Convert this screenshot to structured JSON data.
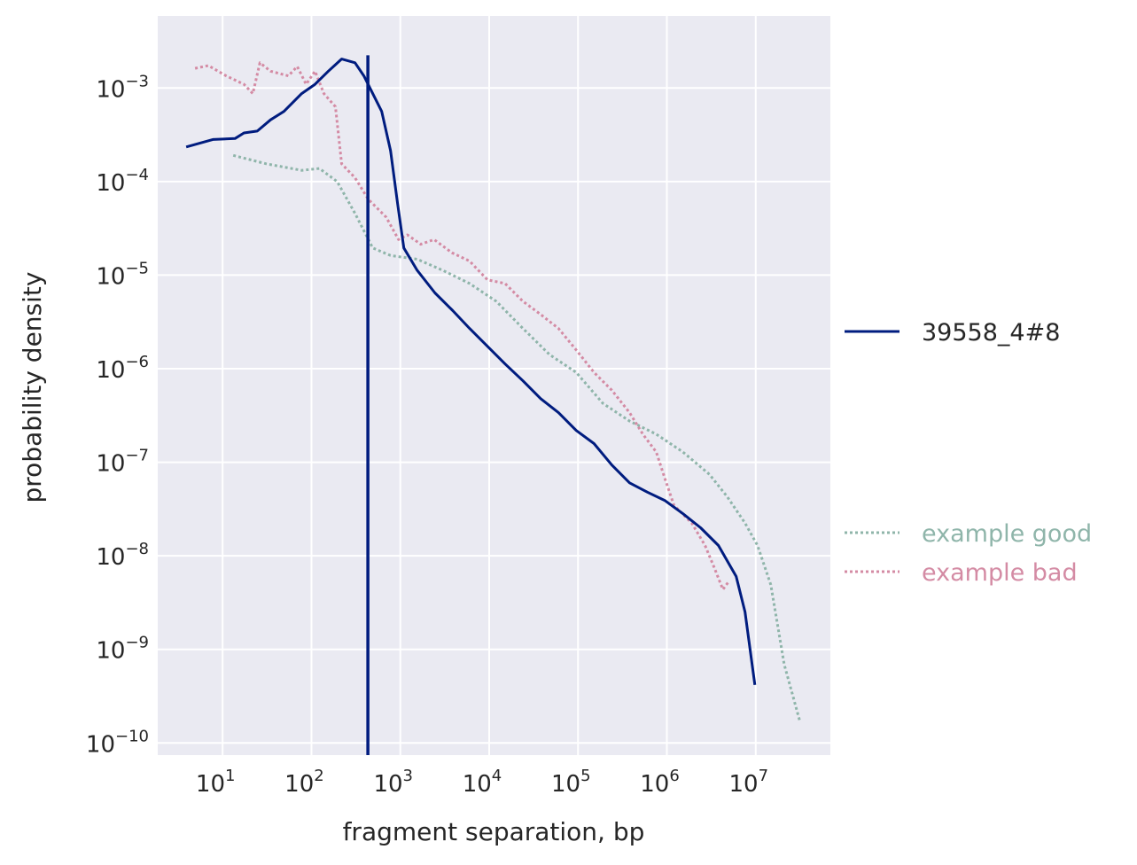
{
  "chart_data": {
    "type": "line",
    "title": "",
    "xlabel": "fragment separation, bp",
    "ylabel": "probability density",
    "xscale": "log",
    "yscale": "log",
    "xlim_log10": [
      0.27,
      7.84
    ],
    "ylim_log10": [
      -10.13,
      -2.23
    ],
    "grid": true,
    "legend_placement": "right-outside",
    "x_ticks": [
      {
        "base": "10",
        "exp": "1",
        "value": 1
      },
      {
        "base": "10",
        "exp": "2",
        "value": 2
      },
      {
        "base": "10",
        "exp": "3",
        "value": 3
      },
      {
        "base": "10",
        "exp": "4",
        "value": 4
      },
      {
        "base": "10",
        "exp": "5",
        "value": 5
      },
      {
        "base": "10",
        "exp": "6",
        "value": 6
      },
      {
        "base": "10",
        "exp": "7",
        "value": 7
      }
    ],
    "y_ticks": [
      {
        "base": "10",
        "exp": "−3",
        "value": -3
      },
      {
        "base": "10",
        "exp": "−4",
        "value": -4
      },
      {
        "base": "10",
        "exp": "−5",
        "value": -5
      },
      {
        "base": "10",
        "exp": "−6",
        "value": -6
      },
      {
        "base": "10",
        "exp": "−7",
        "value": -7
      },
      {
        "base": "10",
        "exp": "−8",
        "value": -8
      },
      {
        "base": "10",
        "exp": "−9",
        "value": -9
      },
      {
        "base": "10",
        "exp": "−10",
        "value": -10
      }
    ],
    "vline": {
      "x_log10": 2.635,
      "color": "#001c7f"
    },
    "series": [
      {
        "name": "39558_4#8",
        "color": "#001c7f",
        "style": "solid",
        "label_color": "#262626",
        "points_log10": [
          [
            0.59,
            -3.63
          ],
          [
            0.89,
            -3.55
          ],
          [
            1.14,
            -3.54
          ],
          [
            1.24,
            -3.48
          ],
          [
            1.39,
            -3.46
          ],
          [
            1.54,
            -3.34
          ],
          [
            1.69,
            -3.25
          ],
          [
            1.89,
            -3.06
          ],
          [
            2.04,
            -2.96
          ],
          [
            2.19,
            -2.82
          ],
          [
            2.34,
            -2.69
          ],
          [
            2.49,
            -2.73
          ],
          [
            2.59,
            -2.87
          ],
          [
            2.69,
            -3.06
          ],
          [
            2.79,
            -3.25
          ],
          [
            2.89,
            -3.67
          ],
          [
            2.97,
            -4.24
          ],
          [
            3.04,
            -4.71
          ],
          [
            3.19,
            -4.95
          ],
          [
            3.39,
            -5.19
          ],
          [
            3.59,
            -5.38
          ],
          [
            3.78,
            -5.57
          ],
          [
            3.98,
            -5.76
          ],
          [
            4.18,
            -5.95
          ],
          [
            4.38,
            -6.13
          ],
          [
            4.58,
            -6.32
          ],
          [
            4.78,
            -6.47
          ],
          [
            4.98,
            -6.66
          ],
          [
            5.18,
            -6.8
          ],
          [
            5.38,
            -7.03
          ],
          [
            5.58,
            -7.22
          ],
          [
            5.78,
            -7.32
          ],
          [
            5.98,
            -7.41
          ],
          [
            6.18,
            -7.55
          ],
          [
            6.38,
            -7.7
          ],
          [
            6.58,
            -7.89
          ],
          [
            6.78,
            -8.22
          ],
          [
            6.88,
            -8.6
          ],
          [
            6.99,
            -9.38
          ]
        ]
      },
      {
        "name": "example good",
        "color": "#8fb5aa",
        "style": "dotted",
        "label_color": "#8fb5aa",
        "points_log10": [
          [
            1.12,
            -3.72
          ],
          [
            1.49,
            -3.81
          ],
          [
            1.89,
            -3.88
          ],
          [
            2.09,
            -3.86
          ],
          [
            2.29,
            -4.0
          ],
          [
            2.49,
            -4.34
          ],
          [
            2.69,
            -4.71
          ],
          [
            2.89,
            -4.79
          ],
          [
            3.19,
            -4.83
          ],
          [
            3.48,
            -4.95
          ],
          [
            3.78,
            -5.09
          ],
          [
            4.08,
            -5.28
          ],
          [
            4.38,
            -5.57
          ],
          [
            4.68,
            -5.85
          ],
          [
            4.98,
            -6.04
          ],
          [
            5.28,
            -6.37
          ],
          [
            5.58,
            -6.56
          ],
          [
            5.88,
            -6.7
          ],
          [
            6.18,
            -6.89
          ],
          [
            6.48,
            -7.13
          ],
          [
            6.68,
            -7.37
          ],
          [
            6.88,
            -7.65
          ],
          [
            7.02,
            -7.89
          ],
          [
            7.17,
            -8.31
          ],
          [
            7.32,
            -9.16
          ],
          [
            7.5,
            -9.78
          ]
        ]
      },
      {
        "name": "example bad",
        "color": "#d48ba4",
        "style": "dotted",
        "label_color": "#d48ba4",
        "points_log10": [
          [
            0.69,
            -2.79
          ],
          [
            0.84,
            -2.76
          ],
          [
            1.04,
            -2.87
          ],
          [
            1.24,
            -2.96
          ],
          [
            1.34,
            -3.06
          ],
          [
            1.42,
            -2.73
          ],
          [
            1.54,
            -2.82
          ],
          [
            1.74,
            -2.87
          ],
          [
            1.84,
            -2.77
          ],
          [
            1.94,
            -2.96
          ],
          [
            2.04,
            -2.82
          ],
          [
            2.14,
            -3.06
          ],
          [
            2.27,
            -3.2
          ],
          [
            2.34,
            -3.81
          ],
          [
            2.49,
            -3.96
          ],
          [
            2.64,
            -4.19
          ],
          [
            2.84,
            -4.38
          ],
          [
            2.98,
            -4.62
          ],
          [
            3.08,
            -4.57
          ],
          [
            3.23,
            -4.67
          ],
          [
            3.38,
            -4.62
          ],
          [
            3.58,
            -4.76
          ],
          [
            3.78,
            -4.85
          ],
          [
            3.98,
            -5.05
          ],
          [
            4.18,
            -5.09
          ],
          [
            4.38,
            -5.28
          ],
          [
            4.58,
            -5.42
          ],
          [
            4.78,
            -5.57
          ],
          [
            4.98,
            -5.8
          ],
          [
            5.18,
            -6.04
          ],
          [
            5.38,
            -6.23
          ],
          [
            5.58,
            -6.47
          ],
          [
            5.73,
            -6.7
          ],
          [
            5.88,
            -6.89
          ],
          [
            5.98,
            -7.18
          ],
          [
            6.08,
            -7.46
          ],
          [
            6.28,
            -7.65
          ],
          [
            6.43,
            -7.89
          ],
          [
            6.53,
            -8.12
          ],
          [
            6.63,
            -8.36
          ],
          [
            6.7,
            -8.27
          ]
        ]
      }
    ]
  }
}
